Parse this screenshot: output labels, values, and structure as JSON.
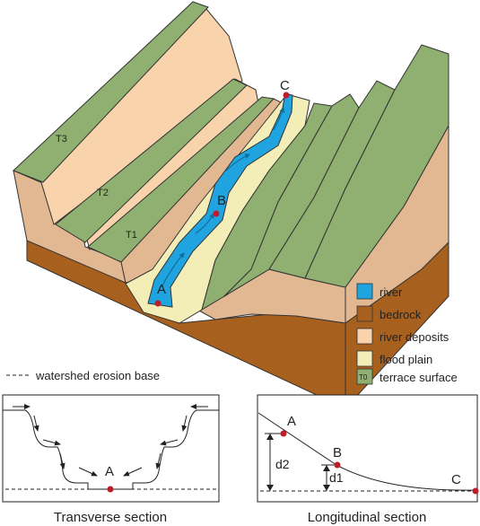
{
  "block": {
    "terrace_labels": [
      "T3",
      "T2",
      "T1"
    ],
    "points": [
      "A",
      "B",
      "C"
    ]
  },
  "legend": {
    "items": [
      {
        "label": "river",
        "color": "#1fa4e0",
        "icon": "swatch"
      },
      {
        "label": "bedrock",
        "color": "#a8601f",
        "icon": "swatch"
      },
      {
        "label": "river deposits",
        "color": "#f8d3ac",
        "icon": "swatch"
      },
      {
        "label": "flood plain",
        "color": "#f3eeb8",
        "icon": "swatch"
      },
      {
        "label": "terrace surface",
        "color": "#8fb070",
        "icon": "swatch-t0",
        "swatch_text": "T0"
      }
    ],
    "erosion_base_label": "watershed erosion base"
  },
  "transverse": {
    "point_label": "A",
    "caption": "Transverse section"
  },
  "longitudinal": {
    "points": [
      "A",
      "B",
      "C"
    ],
    "d_labels": [
      "d2",
      "d1"
    ],
    "caption": "Longitudinal section"
  },
  "colors": {
    "terrace": "#8fb070",
    "deposits": "#f8d3ac",
    "deposits_dark": "#e2b892",
    "bedrock": "#a8601f",
    "flood_plain": "#f3eeb8",
    "river": "#1fa4e0",
    "point": "#c01c28"
  }
}
